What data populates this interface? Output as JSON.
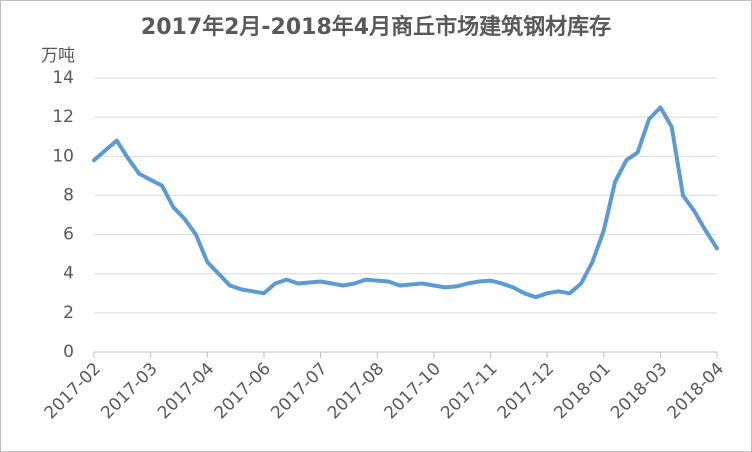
{
  "chart_data": {
    "type": "line",
    "title": "2017年2月-2018年4月商丘市场建筑钢材库存",
    "y_label": "万吨",
    "categories": [
      "2017-02",
      null,
      null,
      null,
      null,
      "2017-03",
      null,
      null,
      null,
      null,
      "2017-04",
      null,
      null,
      null,
      null,
      "2017-06",
      null,
      null,
      null,
      null,
      "2017-07",
      null,
      null,
      null,
      null,
      "2017-08",
      null,
      null,
      null,
      null,
      "2017-10",
      null,
      null,
      null,
      null,
      "2017-11",
      null,
      null,
      null,
      null,
      "2017-12",
      null,
      null,
      null,
      null,
      "2018-01",
      null,
      null,
      null,
      null,
      "2018-03",
      null,
      null,
      null,
      null,
      "2018-04"
    ],
    "series": [
      {
        "name": "库存",
        "color": "#5b9bd5",
        "values": [
          9.8,
          10.3,
          10.8,
          9.9,
          9.1,
          8.8,
          8.5,
          7.4,
          6.8,
          6.0,
          4.6,
          4.0,
          3.4,
          3.2,
          3.1,
          3.0,
          3.5,
          3.7,
          3.5,
          3.55,
          3.6,
          3.5,
          3.4,
          3.5,
          3.7,
          3.65,
          3.6,
          3.4,
          3.45,
          3.5,
          3.4,
          3.3,
          3.35,
          3.5,
          3.6,
          3.65,
          3.5,
          3.3,
          3.0,
          2.8,
          3.0,
          3.1,
          3.0,
          3.5,
          4.6,
          6.2,
          8.7,
          9.8,
          10.2,
          11.9,
          12.5,
          11.5,
          8.0,
          7.2,
          6.2,
          5.3
        ]
      }
    ],
    "ylim": [
      0,
      14
    ],
    "yticks": [
      0,
      2,
      4,
      6,
      8,
      10,
      12,
      14
    ],
    "grid": true
  }
}
